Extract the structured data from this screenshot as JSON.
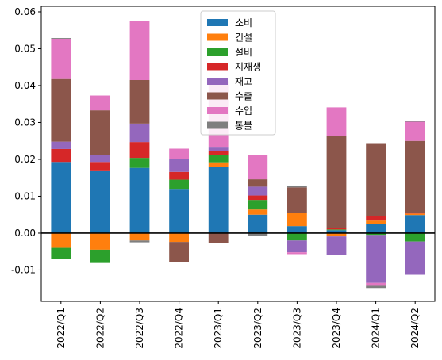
{
  "chart_data": {
    "type": "bar",
    "stacked": true,
    "title": "",
    "xlabel": "",
    "ylabel": "",
    "ylim": [
      -0.0185,
      0.0615
    ],
    "yticks": [
      -0.01,
      0.0,
      0.01,
      0.02,
      0.03,
      0.04,
      0.05,
      0.06
    ],
    "ytick_labels": [
      "-0.01",
      "0.00",
      "0.01",
      "0.02",
      "0.03",
      "0.04",
      "0.05",
      "0.06"
    ],
    "grid": false,
    "zero_line": true,
    "legend_position": "top-center",
    "categories": [
      "2022/Q1",
      "2022/Q2",
      "2022/Q3",
      "2022/Q4",
      "2023/Q1",
      "2023/Q2",
      "2023/Q3",
      "2023/Q4",
      "2024/Q1",
      "2024/Q2"
    ],
    "series": [
      {
        "name": "소비",
        "color": "#1f77b4",
        "values": [
          0.0193,
          0.0168,
          0.0177,
          0.012,
          0.018,
          0.005,
          0.0019,
          0.0008,
          0.0024,
          0.0049
        ]
      },
      {
        "name": "건설",
        "color": "#ff7f0e",
        "values": [
          -0.004,
          -0.0045,
          -0.002,
          -0.0024,
          0.0012,
          0.0014,
          0.0035,
          -0.0009,
          0.001,
          0.0004
        ]
      },
      {
        "name": "설비",
        "color": "#2ca02c",
        "values": [
          -0.003,
          -0.0036,
          0.0027,
          0.0025,
          0.002,
          0.0026,
          -0.002,
          0.0002,
          -0.0005,
          -0.0023
        ]
      },
      {
        "name": "지재생",
        "color": "#d62728",
        "values": [
          0.0035,
          0.0025,
          0.0043,
          0.0021,
          0.001,
          0.0012,
          0.0,
          0.0005,
          0.0012,
          0.0002
        ]
      },
      {
        "name": "재고",
        "color": "#9467bd",
        "values": [
          0.002,
          0.0018,
          0.005,
          0.0036,
          0.001,
          0.0024,
          -0.0032,
          -0.005,
          -0.013,
          -0.009
        ]
      },
      {
        "name": "수출",
        "color": "#8c564b",
        "values": [
          0.0172,
          0.0122,
          0.0118,
          -0.0054,
          -0.0026,
          0.002,
          0.007,
          0.0248,
          0.0198,
          0.0195
        ]
      },
      {
        "name": "수입",
        "color": "#e377c2",
        "values": [
          0.0107,
          0.004,
          0.016,
          0.0027,
          0.018,
          0.0066,
          -0.0005,
          0.0078,
          -0.0008,
          0.0052
        ]
      },
      {
        "name": "통불",
        "color": "#7f7f7f",
        "values": [
          0.0002,
          0.0,
          -0.0005,
          0.0,
          0.0,
          -0.0007,
          0.0005,
          0.0,
          -0.0006,
          0.0002
        ]
      }
    ]
  }
}
